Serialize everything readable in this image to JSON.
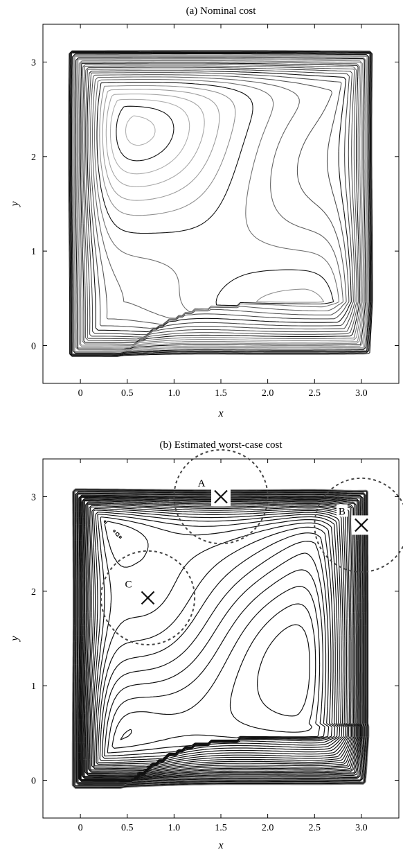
{
  "chart_data": [
    {
      "type": "contour",
      "title": "(a) Nominal cost",
      "xlabel": "x",
      "ylabel": "y",
      "xlim": [
        -0.4,
        3.4
      ],
      "ylim": [
        -0.4,
        3.4
      ],
      "xticks": [
        0,
        0.5,
        1.0,
        1.5,
        2.0,
        2.5,
        3.0
      ],
      "xtick_labels": [
        "0",
        "0.5",
        "1.0",
        "1.5",
        "2.0",
        "2.5",
        "3.0"
      ],
      "yticks": [
        0,
        1,
        2,
        3
      ],
      "ytick_labels": [
        "0",
        "1",
        "2",
        "3"
      ],
      "grid": false,
      "colormap": "grey",
      "points": []
    },
    {
      "type": "contour",
      "title": "(b) Estimated worst-case cost",
      "xlabel": "x",
      "ylabel": "y",
      "xlim": [
        -0.4,
        3.4
      ],
      "ylim": [
        -0.4,
        3.4
      ],
      "xticks": [
        0,
        0.5,
        1.0,
        1.5,
        2.0,
        2.5,
        3.0
      ],
      "xtick_labels": [
        "0",
        "0.5",
        "1.0",
        "1.5",
        "2.0",
        "2.5",
        "3.0"
      ],
      "yticks": [
        0,
        1,
        2,
        3
      ],
      "ytick_labels": [
        "0",
        "1",
        "2",
        "3"
      ],
      "grid": false,
      "colormap": "grey",
      "points": [
        {
          "label": "A",
          "x": 1.5,
          "y": 3.0,
          "radius": 0.5
        },
        {
          "label": "B",
          "x": 3.0,
          "y": 2.7,
          "radius": 0.5
        },
        {
          "label": "C",
          "x": 0.72,
          "y": 1.93,
          "radius": 0.5
        }
      ]
    }
  ]
}
